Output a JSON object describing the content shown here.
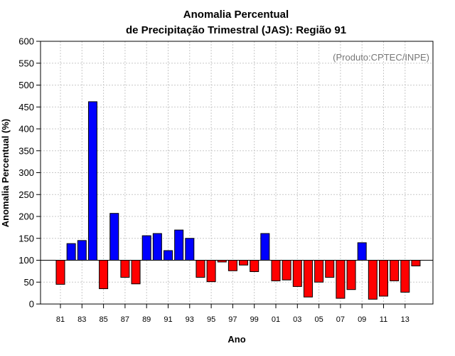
{
  "chart_data": {
    "type": "bar",
    "title_line1": "Anomalia Percentual",
    "title_line2": "de Precipitação Trimestral (JAS): Região 91",
    "xlabel": "Ano",
    "ylabel": "Anomalia Percentual (%)",
    "annotation": "(Produto:CPTEC/INPE)",
    "baseline": 100,
    "ylim": [
      0,
      600
    ],
    "yticks": [
      0,
      50,
      100,
      150,
      200,
      250,
      300,
      350,
      400,
      450,
      500,
      550,
      600
    ],
    "grid": true,
    "categories": [
      "81",
      "82",
      "83",
      "84",
      "85",
      "86",
      "87",
      "88",
      "89",
      "90",
      "91",
      "92",
      "93",
      "94",
      "95",
      "96",
      "97",
      "98",
      "99",
      "00",
      "01",
      "02",
      "03",
      "04",
      "05",
      "06",
      "07",
      "08",
      "09",
      "10",
      "11",
      "12",
      "13",
      "14"
    ],
    "xtick_labels": [
      "81",
      "83",
      "85",
      "87",
      "89",
      "91",
      "93",
      "95",
      "97",
      "99",
      "01",
      "03",
      "05",
      "07",
      "09",
      "11",
      "13"
    ],
    "values": [
      45,
      138,
      145,
      462,
      35,
      207,
      61,
      46,
      156,
      161,
      122,
      169,
      150,
      61,
      51,
      96,
      76,
      89,
      74,
      161,
      53,
      55,
      40,
      16,
      50,
      61,
      13,
      33,
      140,
      11,
      18,
      53,
      27,
      87
    ],
    "colors": {
      "above": "#0000ff",
      "below": "#ff0000"
    }
  }
}
